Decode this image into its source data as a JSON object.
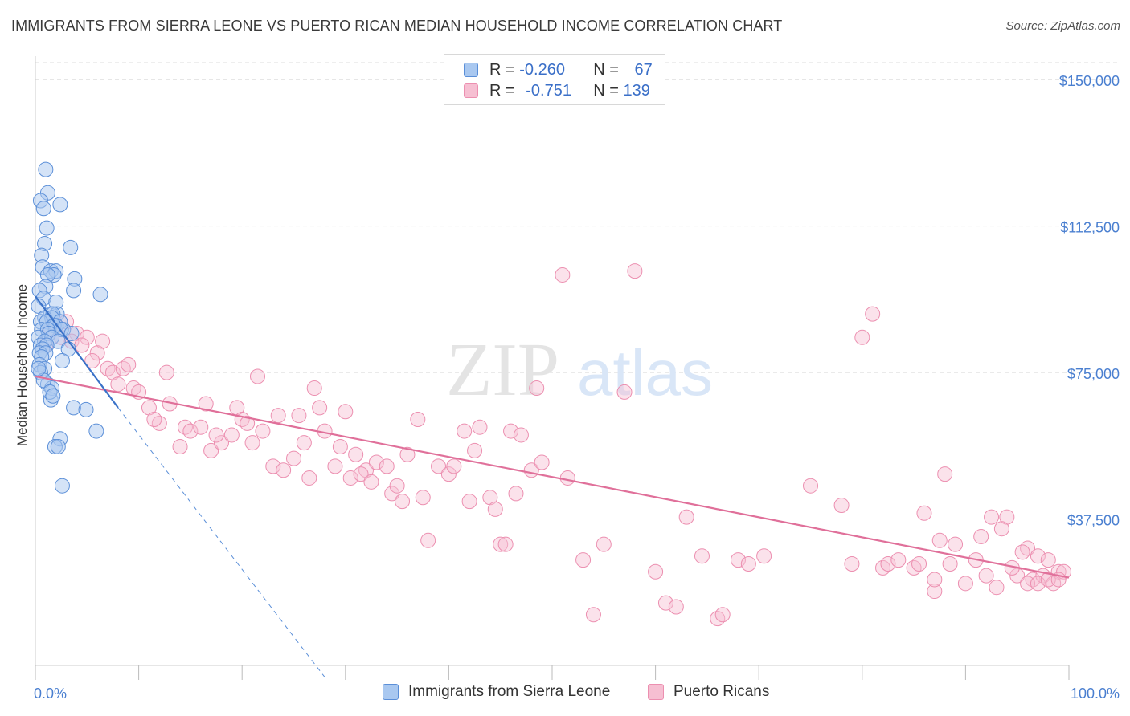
{
  "title": "IMMIGRANTS FROM SIERRA LEONE VS PUERTO RICAN MEDIAN HOUSEHOLD INCOME CORRELATION CHART",
  "source": "Source: ZipAtlas.com",
  "watermark": {
    "zip": "ZIP",
    "atlas": "atlas"
  },
  "colors": {
    "blue_fill": "#a9c8f0",
    "blue_stroke": "#5b8fd8",
    "blue_line": "#3a72c8",
    "pink_fill": "#f6bfd2",
    "pink_stroke": "#ec8fb0",
    "pink_line": "#e0709a",
    "axis_label": "#4a7fd0",
    "grid": "#dddddd"
  },
  "legend": {
    "series1": {
      "r_label": "R = ",
      "r_value": "-0.260",
      "n_label": "N = ",
      "n_value": "67"
    },
    "series2": {
      "r_label": "R = ",
      "r_value": "-0.751",
      "n_label": "N = ",
      "n_value": "139"
    }
  },
  "bottom_legend": {
    "series1": "Immigrants from Sierra Leone",
    "series2": "Puerto Ricans"
  },
  "chart_data": {
    "type": "scatter",
    "title": "IMMIGRANTS FROM SIERRA LEONE VS PUERTO RICAN MEDIAN HOUSEHOLD INCOME CORRELATION CHART",
    "xlabel": "",
    "ylabel": "Median Household Income",
    "xlim": [
      0,
      100
    ],
    "ylim": [
      0,
      156000
    ],
    "x_tick_labels": {
      "left": "0.0%",
      "right": "100.0%"
    },
    "y_ticks": [
      37500,
      75000,
      112500,
      150000
    ],
    "y_tick_labels": [
      "$37,500",
      "$75,000",
      "$112,500",
      "$150,000"
    ],
    "series": [
      {
        "name": "Immigrants from Sierra Leone",
        "r": -0.26,
        "n": 67,
        "trend_solid": [
          [
            0,
            94500
          ],
          [
            8,
            66000
          ]
        ],
        "trend_dashed": [
          [
            8,
            66000
          ],
          [
            28,
            -3000
          ]
        ],
        "points": [
          [
            1,
            127
          ],
          [
            1.2,
            121
          ],
          [
            0.5,
            119
          ],
          [
            2.4,
            118
          ],
          [
            0.8,
            117
          ],
          [
            1.1,
            112
          ],
          [
            0.9,
            108
          ],
          [
            3.4,
            107
          ],
          [
            0.6,
            105
          ],
          [
            0.7,
            102
          ],
          [
            1.5,
            101
          ],
          [
            2,
            101
          ],
          [
            1.8,
            100
          ],
          [
            1.2,
            100
          ],
          [
            3.8,
            99
          ],
          [
            1,
            97
          ],
          [
            0.4,
            96
          ],
          [
            3.7,
            96
          ],
          [
            6.3,
            95
          ],
          [
            0.8,
            94
          ],
          [
            2,
            93
          ],
          [
            0.3,
            92
          ],
          [
            1.5,
            90
          ],
          [
            2.1,
            90
          ],
          [
            1.7,
            90
          ],
          [
            0.9,
            89
          ],
          [
            1.6,
            89
          ],
          [
            2.4,
            88
          ],
          [
            0.5,
            88
          ],
          [
            1.1,
            88
          ],
          [
            2,
            87
          ],
          [
            1.8,
            87
          ],
          [
            2.7,
            86
          ],
          [
            0.6,
            86
          ],
          [
            1.2,
            86
          ],
          [
            2.5,
            86
          ],
          [
            1.3,
            85
          ],
          [
            3.5,
            85
          ],
          [
            0.3,
            84
          ],
          [
            1.6,
            84
          ],
          [
            0.9,
            83
          ],
          [
            2.2,
            83
          ],
          [
            0.5,
            82
          ],
          [
            1.1,
            82
          ],
          [
            3.2,
            81
          ],
          [
            0.7,
            81
          ],
          [
            0.4,
            80
          ],
          [
            1,
            80
          ],
          [
            0.6,
            79
          ],
          [
            2.6,
            78
          ],
          [
            0.4,
            77
          ],
          [
            0.9,
            76
          ],
          [
            0.5,
            75
          ],
          [
            1.2,
            72
          ],
          [
            1.6,
            71
          ],
          [
            1.5,
            68
          ],
          [
            3.7,
            66
          ],
          [
            4.9,
            65.5
          ],
          [
            5.9,
            60
          ],
          [
            2.4,
            58
          ],
          [
            1.9,
            56
          ],
          [
            2.2,
            56
          ],
          [
            2.6,
            46
          ],
          [
            0.8,
            73
          ],
          [
            1.4,
            70
          ],
          [
            0.3,
            76
          ],
          [
            1.7,
            69
          ]
        ]
      },
      {
        "name": "Puerto Ricans",
        "r": -0.751,
        "n": 139,
        "trend": [
          [
            0,
            74000
          ],
          [
            100,
            22500
          ]
        ],
        "points": [
          [
            1.5,
            86
          ],
          [
            2.5,
            84
          ],
          [
            3,
            88
          ],
          [
            1,
            82
          ],
          [
            4,
            85
          ],
          [
            5,
            84
          ],
          [
            6.5,
            83
          ],
          [
            2,
            87
          ],
          [
            3.5,
            83
          ],
          [
            4.5,
            82
          ],
          [
            6,
            80
          ],
          [
            5.5,
            78
          ],
          [
            7,
            76
          ],
          [
            7.5,
            75
          ],
          [
            8.5,
            76
          ],
          [
            9,
            77
          ],
          [
            8,
            72
          ],
          [
            9.5,
            71
          ],
          [
            10,
            70
          ],
          [
            11,
            66
          ],
          [
            12,
            62
          ],
          [
            12.7,
            75
          ],
          [
            11.5,
            63
          ],
          [
            13,
            67
          ],
          [
            14.5,
            61
          ],
          [
            15,
            60
          ],
          [
            14,
            56
          ],
          [
            16,
            61
          ],
          [
            17,
            55
          ],
          [
            18,
            57
          ],
          [
            16.5,
            67
          ],
          [
            17.5,
            59
          ],
          [
            19,
            59
          ],
          [
            19.5,
            66
          ],
          [
            20,
            63
          ],
          [
            20.5,
            62
          ],
          [
            21.5,
            74
          ],
          [
            22,
            60
          ],
          [
            21,
            57
          ],
          [
            23,
            51
          ],
          [
            23.5,
            64
          ],
          [
            24,
            50
          ],
          [
            25,
            53
          ],
          [
            25.5,
            64
          ],
          [
            26,
            57
          ],
          [
            26.5,
            48
          ],
          [
            27,
            71
          ],
          [
            28,
            60
          ],
          [
            29,
            51
          ],
          [
            27.5,
            66
          ],
          [
            29.5,
            56
          ],
          [
            30,
            65
          ],
          [
            30.5,
            48
          ],
          [
            31,
            54
          ],
          [
            32,
            50
          ],
          [
            31.5,
            49
          ],
          [
            32.5,
            47
          ],
          [
            33,
            52
          ],
          [
            34,
            51
          ],
          [
            34.5,
            44
          ],
          [
            35,
            46
          ],
          [
            35.5,
            42
          ],
          [
            36,
            54
          ],
          [
            37,
            63
          ],
          [
            37.5,
            43
          ],
          [
            38,
            32
          ],
          [
            39,
            51
          ],
          [
            40,
            49
          ],
          [
            40.5,
            51
          ],
          [
            41.5,
            60
          ],
          [
            42,
            42
          ],
          [
            42.5,
            55
          ],
          [
            43,
            61
          ],
          [
            44,
            43
          ],
          [
            44.5,
            40
          ],
          [
            45,
            31
          ],
          [
            45.5,
            31
          ],
          [
            46,
            60
          ],
          [
            46.5,
            44
          ],
          [
            47,
            59
          ],
          [
            48,
            50
          ],
          [
            48.5,
            71
          ],
          [
            49,
            52
          ],
          [
            51,
            100
          ],
          [
            51.5,
            48
          ],
          [
            53,
            27
          ],
          [
            54,
            13
          ],
          [
            55,
            31
          ],
          [
            57,
            70
          ],
          [
            58,
            101
          ],
          [
            60,
            24
          ],
          [
            61,
            16
          ],
          [
            62,
            15
          ],
          [
            63,
            38
          ],
          [
            64.5,
            28
          ],
          [
            66,
            12
          ],
          [
            66.5,
            13
          ],
          [
            68,
            27
          ],
          [
            69,
            26
          ],
          [
            70.5,
            28
          ],
          [
            75,
            46
          ],
          [
            78,
            41
          ],
          [
            79,
            26
          ],
          [
            80,
            84
          ],
          [
            81,
            90
          ],
          [
            82,
            25
          ],
          [
            82.5,
            26
          ],
          [
            85,
            25
          ],
          [
            86,
            39
          ],
          [
            87,
            19
          ],
          [
            87.5,
            32
          ],
          [
            88,
            49
          ],
          [
            90,
            21
          ],
          [
            91,
            27
          ],
          [
            92,
            23
          ],
          [
            93,
            20
          ],
          [
            94,
            38
          ],
          [
            95,
            23
          ],
          [
            96,
            30
          ],
          [
            97,
            28
          ],
          [
            98,
            27
          ],
          [
            99,
            24
          ],
          [
            94.5,
            25
          ],
          [
            96.5,
            22
          ],
          [
            97.5,
            23
          ],
          [
            98.5,
            21
          ],
          [
            99.5,
            24
          ],
          [
            95.5,
            29
          ],
          [
            93.5,
            35
          ],
          [
            91.5,
            33
          ],
          [
            89,
            31
          ],
          [
            88.5,
            26
          ],
          [
            87,
            22
          ],
          [
            85.5,
            26
          ],
          [
            83.5,
            27
          ],
          [
            96,
            21
          ],
          [
            97,
            21
          ],
          [
            98,
            22
          ],
          [
            99,
            22
          ],
          [
            92.5,
            38
          ]
        ]
      }
    ]
  }
}
